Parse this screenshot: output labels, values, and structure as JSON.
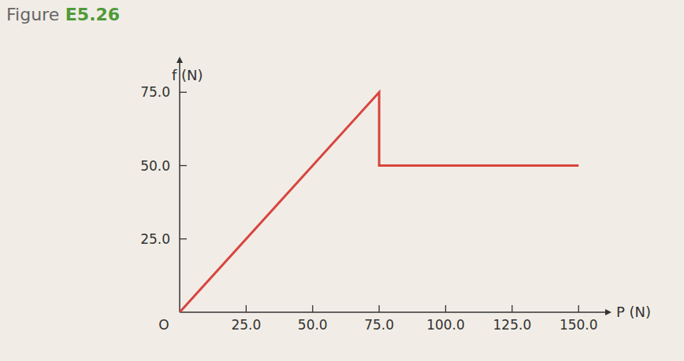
{
  "chart_data": {
    "type": "line",
    "title": "Figure E5.26",
    "x_label": "P (N)",
    "y_label": "f (N)",
    "annotations": [
      "O"
    ],
    "x": [
      0,
      75,
      75,
      150
    ],
    "series": [
      {
        "name": "f",
        "color": "#d8453f",
        "values": [
          0,
          75,
          50,
          50
        ]
      }
    ],
    "xlim": [
      0,
      160
    ],
    "ylim": [
      0,
      85
    ],
    "xticks": [
      {
        "value": 25,
        "label": "25.0"
      },
      {
        "value": 50,
        "label": "50.0"
      },
      {
        "value": 75,
        "label": "75.0"
      },
      {
        "value": 100,
        "label": "100.0"
      },
      {
        "value": 125,
        "label": "125.0"
      },
      {
        "value": 150,
        "label": "150.0"
      }
    ],
    "yticks": [
      {
        "value": 25,
        "label": "25.0"
      },
      {
        "value": 50,
        "label": "50.0"
      },
      {
        "value": 75,
        "label": "75.0"
      }
    ],
    "grid": false
  }
}
